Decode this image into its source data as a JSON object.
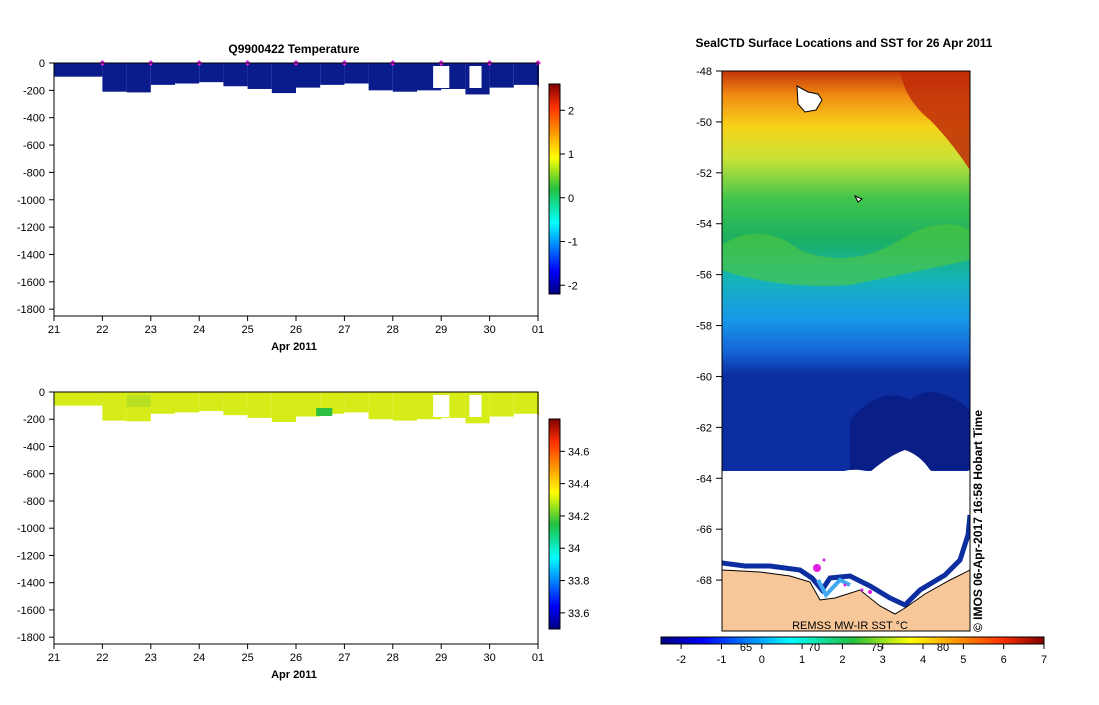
{
  "chart_data": [
    {
      "type": "heatmap",
      "title": "Q9900422  Temperature",
      "xlabel": "Apr 2011",
      "x_ticks": [
        "21",
        "22",
        "23",
        "24",
        "25",
        "26",
        "27",
        "28",
        "29",
        "30",
        "01"
      ],
      "xlim": [
        "2011-04-21",
        "2011-05-01"
      ],
      "ylim": [
        -1850,
        0
      ],
      "y_ticks": [
        "0",
        "-200",
        "-400",
        "-600",
        "-800",
        "-1000",
        "-1200",
        "-1400",
        "-1600",
        "-1800"
      ],
      "y_tick_values": [
        0,
        -200,
        -400,
        -600,
        -800,
        -1000,
        -1200,
        -1400,
        -1600,
        -1800
      ],
      "colorbar": {
        "min": -2.2,
        "max": 2.6,
        "ticks": [
          "2",
          "1",
          "0",
          "-1",
          "-2"
        ],
        "tick_values": [
          2,
          1,
          0,
          -1,
          -2
        ]
      },
      "value_estimate": -1.9,
      "profile_dates": [
        "2011-04-21T12:00",
        "2011-04-22T00:00",
        "2011-04-22T12:00",
        "2011-04-23T00:00",
        "2011-04-23T12:00",
        "2011-04-24T00:00",
        "2011-04-24T12:00",
        "2011-04-25T00:00",
        "2011-04-25T12:00",
        "2011-04-26T00:00",
        "2011-04-26T12:00",
        "2011-04-27T00:00",
        "2011-04-27T12:00",
        "2011-04-28T00:00",
        "2011-04-28T12:00",
        "2011-04-29T00:00",
        "2011-04-29T12:00",
        "2011-04-30T00:00",
        "2011-04-30T12:00",
        "2011-05-01T00:00"
      ],
      "profile_depths": [
        -100,
        -210,
        -215,
        -160,
        -150,
        -140,
        -170,
        -190,
        -220,
        -180,
        -160,
        -150,
        -200,
        -210,
        -200,
        -190,
        -230,
        -180,
        -160,
        -170
      ],
      "marker_dates": [
        "2011-04-22",
        "2011-04-23",
        "2011-04-24",
        "2011-04-25",
        "2011-04-26",
        "2011-04-27",
        "2011-04-28",
        "2011-04-29",
        "2011-04-30",
        "2011-05-01"
      ]
    },
    {
      "type": "heatmap",
      "xlabel": "Apr 2011",
      "x_ticks": [
        "21",
        "22",
        "23",
        "24",
        "25",
        "26",
        "27",
        "28",
        "29",
        "30",
        "01"
      ],
      "xlim": [
        "2011-04-21",
        "2011-05-01"
      ],
      "ylim": [
        -1850,
        0
      ],
      "y_ticks": [
        "0",
        "-200",
        "-400",
        "-600",
        "-800",
        "-1000",
        "-1200",
        "-1400",
        "-1600",
        "-1800"
      ],
      "y_tick_values": [
        0,
        -200,
        -400,
        -600,
        -800,
        -1000,
        -1200,
        -1400,
        -1600,
        -1800
      ],
      "colorbar": {
        "min": 33.5,
        "max": 34.8,
        "ticks": [
          "34.6",
          "34.4",
          "34.2",
          "34",
          "33.8",
          "33.6"
        ],
        "tick_values": [
          34.6,
          34.4,
          34.2,
          34.0,
          33.8,
          33.6
        ]
      },
      "value_estimate": 34.3
    },
    {
      "type": "heatmap",
      "title": "SealCTD Surface Locations and SST for 26 Apr 2011",
      "y_ticks": [
        "-48",
        "-50",
        "-52",
        "-54",
        "-56",
        "-58",
        "-60",
        "-62",
        "-64",
        "-66",
        "-68"
      ],
      "y_tick_values": [
        -48,
        -50,
        -52,
        -54,
        -56,
        -58,
        -60,
        -62,
        -64,
        -66,
        -68
      ],
      "ylim": [
        -48,
        -70
      ],
      "colorbar": {
        "min": -2.5,
        "max": 7,
        "ticks": [
          "-2",
          "-1",
          "0",
          "1",
          "2",
          "3",
          "4",
          "5",
          "6",
          "7"
        ],
        "tick_values": [
          -2,
          -1,
          0,
          1,
          2,
          3,
          4,
          5,
          6,
          7
        ]
      },
      "map_longitude_labels": [
        "65",
        "70",
        "75",
        "80"
      ],
      "sst_label": "REMSS MW-IR SST °C",
      "credit": "© IMOS 06-Apr-2017 16:58 Hobart Time"
    }
  ],
  "colors": {
    "ocean_deep": "#0a1c8c",
    "land": "#f7c79a",
    "marker": "#e020e0",
    "salinity_fill": "#d6ec18"
  }
}
